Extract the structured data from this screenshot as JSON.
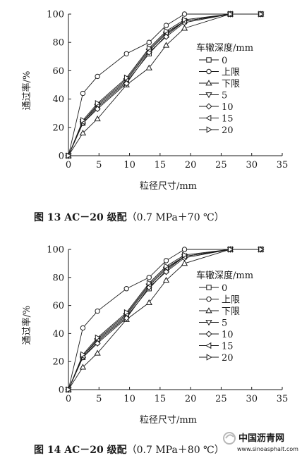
{
  "chart_data": [
    {
      "type": "line",
      "caption": {
        "fig": "图 13",
        "title": "AC－20 级配",
        "condition": "（0.7 MPa＋70 ℃）"
      },
      "xlabel": "粒径尺寸/mm",
      "ylabel": "通过率/%",
      "xlim": [
        0,
        35
      ],
      "ylim": [
        0,
        100
      ],
      "xticks": [
        0,
        5,
        10,
        15,
        20,
        25,
        30,
        35
      ],
      "yticks": [
        0,
        20,
        40,
        60,
        80,
        100
      ],
      "grid": false,
      "legend_title": "车辙深度/mm",
      "legend_position": "right",
      "x": [
        0,
        2.36,
        4.75,
        9.5,
        13.2,
        16,
        19,
        26.5,
        31.5
      ],
      "series": [
        {
          "name": "0",
          "marker": "square",
          "values": [
            0,
            23,
            34,
            52,
            72,
            85,
            95,
            100,
            100
          ]
        },
        {
          "name": "上限",
          "marker": "circle",
          "values": [
            0,
            44,
            56,
            72,
            80,
            92,
            100,
            100,
            100
          ]
        },
        {
          "name": "下限",
          "marker": "triangle-up",
          "values": [
            0,
            16,
            26,
            50,
            62,
            78,
            90,
            100,
            100
          ]
        },
        {
          "name": "5",
          "marker": "triangle-down",
          "values": [
            0,
            24,
            35,
            53,
            74,
            86,
            95,
            100,
            100
          ]
        },
        {
          "name": "10",
          "marker": "diamond",
          "values": [
            0,
            23,
            33,
            51,
            73,
            84,
            94,
            100,
            100
          ]
        },
        {
          "name": "15",
          "marker": "triangle-left",
          "values": [
            0,
            24,
            36,
            54,
            75,
            87,
            95,
            100,
            100
          ]
        },
        {
          "name": "20",
          "marker": "triangle-right",
          "values": [
            0,
            25,
            37,
            55,
            76,
            88,
            96,
            100,
            100
          ]
        }
      ]
    },
    {
      "type": "line",
      "caption": {
        "fig": "图 14",
        "title": "AC－20 级配",
        "condition": "（0.7 MPa＋80 ℃）"
      },
      "xlabel": "粒径尺寸/mm",
      "ylabel": "通过率/%",
      "xlim": [
        0,
        35
      ],
      "ylim": [
        0,
        100
      ],
      "xticks": [
        0,
        5,
        10,
        15,
        20,
        25,
        30,
        35
      ],
      "yticks": [
        0,
        20,
        40,
        60,
        80,
        100
      ],
      "grid": false,
      "legend_title": "车辙深度/mm",
      "legend_position": "right",
      "x": [
        0,
        2.36,
        4.75,
        9.5,
        13.2,
        16,
        19,
        26.5,
        31.5
      ],
      "series": [
        {
          "name": "0",
          "marker": "square",
          "values": [
            0,
            23,
            34,
            52,
            72,
            85,
            95,
            100,
            100
          ]
        },
        {
          "name": "上限",
          "marker": "circle",
          "values": [
            0,
            44,
            56,
            72,
            80,
            92,
            100,
            100,
            100
          ]
        },
        {
          "name": "下限",
          "marker": "triangle-up",
          "values": [
            0,
            16,
            26,
            50,
            62,
            78,
            90,
            100,
            100
          ]
        },
        {
          "name": "5",
          "marker": "triangle-down",
          "values": [
            0,
            24,
            35,
            53,
            74,
            86,
            95,
            100,
            100
          ]
        },
        {
          "name": "10",
          "marker": "diamond",
          "values": [
            0,
            23,
            33,
            51,
            73,
            84,
            94,
            100,
            100
          ]
        },
        {
          "name": "15",
          "marker": "triangle-left",
          "values": [
            0,
            24,
            36,
            54,
            75,
            87,
            95,
            100,
            100
          ]
        },
        {
          "name": "20",
          "marker": "triangle-right",
          "values": [
            0,
            25,
            37,
            55,
            76,
            88,
            96,
            100,
            100
          ]
        }
      ]
    }
  ],
  "watermark": {
    "site": "中国沥青网",
    "url": "www.sinoasphalt.com"
  },
  "colors": {
    "ink": "#1a1a1a",
    "background": "#ffffff",
    "watermark": "#b8b8b8"
  }
}
